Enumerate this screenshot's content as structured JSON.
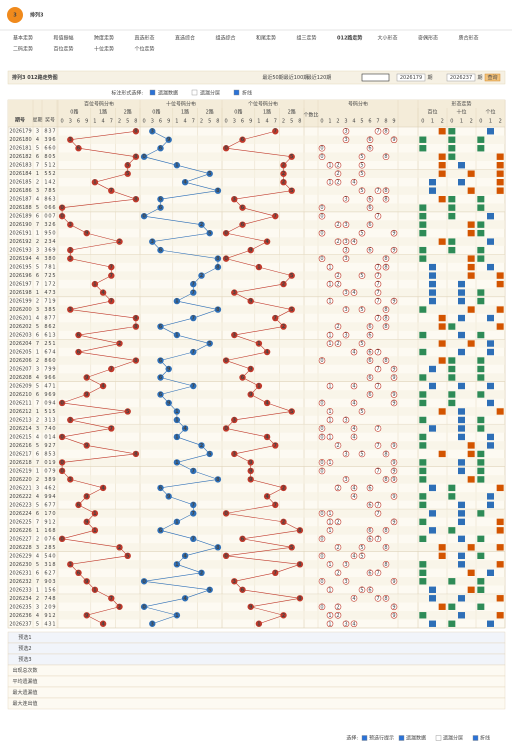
{
  "header": {
    "logo": "3",
    "title": "排列3"
  },
  "nav": [
    [
      "基本走势",
      "和值振幅",
      "跨度走势",
      "直选形态",
      "直选综合",
      "组选综合",
      "和尾走势",
      "组三走势",
      "012路走势",
      "大小形态",
      "奇偶形态",
      "质合形态"
    ],
    [
      "二码走势",
      "百位走势",
      "十位走势",
      "个位走势"
    ]
  ],
  "nav_active": [
    0,
    8
  ],
  "toolbar": {
    "title": "排列3 012路走势图",
    "links": [
      "最近50期",
      "最近100期",
      "最近120期"
    ],
    "from": "2026179",
    "to": "2026237",
    "unit": "期",
    "button": "查询"
  },
  "options": {
    "label": "标注形式选择:",
    "items": [
      "遗漏数据",
      "遗漏分层",
      "折线"
    ],
    "checked": [
      true,
      false,
      true
    ]
  },
  "table": {
    "head": {
      "issue": "期号",
      "week": "星期",
      "number": "奖号",
      "sections": [
        "百位号码分布",
        "十位号码分布",
        "个位号码分布"
      ],
      "routes": [
        "0路",
        "1路",
        "2路"
      ],
      "digit_order": [
        0,
        3,
        6,
        9,
        1,
        4,
        7,
        2,
        5,
        8
      ],
      "count": "个数比",
      "dist": "号码分布",
      "dist_digits": [
        0,
        1,
        2,
        3,
        4,
        5,
        6,
        7,
        8,
        9
      ],
      "form": "形态走势",
      "form_sections": [
        "百位",
        "十位",
        "个位"
      ],
      "form_digits": [
        0,
        1,
        2
      ]
    },
    "rows": [
      {
        "issue": 2026179,
        "week": 3,
        "digits": [
          8,
          3,
          7
        ]
      },
      {
        "issue": 2026180,
        "week": 4,
        "digits": [
          3,
          9,
          6
        ]
      },
      {
        "issue": 2026181,
        "week": 5,
        "digits": [
          6,
          6,
          0
        ]
      },
      {
        "issue": 2026182,
        "week": 6,
        "digits": [
          8,
          0,
          5
        ]
      },
      {
        "issue": 2026183,
        "week": 7,
        "digits": [
          5,
          1,
          2
        ]
      },
      {
        "issue": 2026184,
        "week": 1,
        "digits": [
          5,
          5,
          2
        ]
      },
      {
        "issue": 2026185,
        "week": 2,
        "digits": [
          1,
          4,
          2
        ]
      },
      {
        "issue": 2026186,
        "week": 3,
        "digits": [
          7,
          8,
          5
        ]
      },
      {
        "issue": 2026187,
        "week": 4,
        "digits": [
          8,
          6,
          3
        ]
      },
      {
        "issue": 2026188,
        "week": 5,
        "digits": [
          0,
          6,
          6
        ]
      },
      {
        "issue": 2026189,
        "week": 6,
        "digits": [
          0,
          0,
          7
        ]
      },
      {
        "issue": 2026190,
        "week": 7,
        "digits": [
          3,
          2,
          6
        ]
      },
      {
        "issue": 2026191,
        "week": 1,
        "digits": [
          9,
          5,
          0
        ]
      },
      {
        "issue": 2026192,
        "week": 2,
        "digits": [
          2,
          3,
          4
        ]
      },
      {
        "issue": 2026193,
        "week": 3,
        "digits": [
          3,
          6,
          9
        ]
      },
      {
        "issue": 2026194,
        "week": 4,
        "digits": [
          3,
          8,
          0
        ]
      },
      {
        "issue": 2026195,
        "week": 5,
        "digits": [
          7,
          8,
          1
        ]
      },
      {
        "issue": 2026196,
        "week": 6,
        "digits": [
          7,
          2,
          5
        ]
      },
      {
        "issue": 2026197,
        "week": 7,
        "digits": [
          1,
          7,
          2
        ]
      },
      {
        "issue": 2026198,
        "week": 1,
        "digits": [
          4,
          7,
          3
        ]
      },
      {
        "issue": 2026199,
        "week": 2,
        "digits": [
          7,
          1,
          9
        ]
      },
      {
        "issue": 2026200,
        "week": 3,
        "digits": [
          3,
          8,
          5
        ]
      },
      {
        "issue": 2026201,
        "week": 4,
        "digits": [
          8,
          7,
          7
        ]
      },
      {
        "issue": 2026202,
        "week": 5,
        "digits": [
          8,
          6,
          2
        ]
      },
      {
        "issue": 2026203,
        "week": 6,
        "digits": [
          6,
          1,
          3
        ]
      },
      {
        "issue": 2026204,
        "week": 7,
        "digits": [
          2,
          5,
          1
        ]
      },
      {
        "issue": 2026205,
        "week": 1,
        "digits": [
          6,
          7,
          4
        ]
      },
      {
        "issue": 2026206,
        "week": 2,
        "digits": [
          8,
          6,
          0
        ]
      },
      {
        "issue": 2026207,
        "week": 3,
        "digits": [
          7,
          9,
          9
        ]
      },
      {
        "issue": 2026208,
        "week": 4,
        "digits": [
          9,
          6,
          6
        ]
      },
      {
        "issue": 2026209,
        "week": 5,
        "digits": [
          4,
          7,
          1
        ]
      },
      {
        "issue": 2026210,
        "week": 6,
        "digits": [
          9,
          6,
          9
        ]
      },
      {
        "issue": 2026211,
        "week": 7,
        "digits": [
          0,
          9,
          4
        ]
      },
      {
        "issue": 2026212,
        "week": 1,
        "digits": [
          5,
          1,
          5
        ]
      },
      {
        "issue": 2026213,
        "week": 2,
        "digits": [
          3,
          1,
          3
        ]
      },
      {
        "issue": 2026214,
        "week": 3,
        "digits": [
          7,
          4,
          0
        ]
      },
      {
        "issue": 2026215,
        "week": 4,
        "digits": [
          0,
          1,
          4
        ]
      },
      {
        "issue": 2026216,
        "week": 5,
        "digits": [
          9,
          2,
          7
        ]
      },
      {
        "issue": 2026217,
        "week": 6,
        "digits": [
          8,
          5,
          3
        ]
      },
      {
        "issue": 2026218,
        "week": 7,
        "digits": [
          0,
          1,
          9
        ]
      },
      {
        "issue": 2026219,
        "week": 1,
        "digits": [
          0,
          7,
          9
        ]
      },
      {
        "issue": 2026220,
        "week": 2,
        "digits": [
          3,
          8,
          9
        ]
      },
      {
        "issue": 2026221,
        "week": 3,
        "digits": [
          4,
          6,
          2
        ]
      },
      {
        "issue": 2026222,
        "week": 4,
        "digits": [
          9,
          9,
          4
        ]
      },
      {
        "issue": 2026223,
        "week": 5,
        "digits": [
          6,
          7,
          7
        ]
      },
      {
        "issue": 2026224,
        "week": 6,
        "digits": [
          1,
          7,
          0
        ]
      },
      {
        "issue": 2026225,
        "week": 7,
        "digits": [
          9,
          1,
          2
        ]
      },
      {
        "issue": 2026226,
        "week": 1,
        "digits": [
          1,
          6,
          8
        ]
      },
      {
        "issue": 2026227,
        "week": 2,
        "digits": [
          0,
          7,
          6
        ]
      },
      {
        "issue": 2026228,
        "week": 3,
        "digits": [
          2,
          8,
          5
        ]
      },
      {
        "issue": 2026229,
        "week": 4,
        "digits": [
          5,
          4,
          0
        ]
      },
      {
        "issue": 2026230,
        "week": 5,
        "digits": [
          3,
          1,
          8
        ]
      },
      {
        "issue": 2026231,
        "week": 6,
        "digits": [
          6,
          2,
          7
        ]
      },
      {
        "issue": 2026232,
        "week": 7,
        "digits": [
          9,
          0,
          3
        ]
      },
      {
        "issue": 2026233,
        "week": 1,
        "digits": [
          1,
          5,
          6
        ]
      },
      {
        "issue": 2026234,
        "week": 2,
        "digits": [
          7,
          4,
          8
        ]
      },
      {
        "issue": 2026235,
        "week": 3,
        "digits": [
          2,
          0,
          9
        ]
      },
      {
        "issue": 2026236,
        "week": 4,
        "digits": [
          9,
          1,
          2
        ]
      },
      {
        "issue": 2026237,
        "week": 5,
        "digits": [
          4,
          3,
          1
        ]
      }
    ],
    "footer_rows": [
      "预选1",
      "预选2",
      "预选3",
      "出现总次数",
      "平均遗漏值",
      "最大遗漏值",
      "最大连出值"
    ]
  },
  "footer": {
    "label": "选择:",
    "items": [
      "预选行提示",
      "遗漏数据",
      "遗漏分层",
      "折线"
    ],
    "checked": [
      true,
      true,
      false,
      true
    ]
  }
}
